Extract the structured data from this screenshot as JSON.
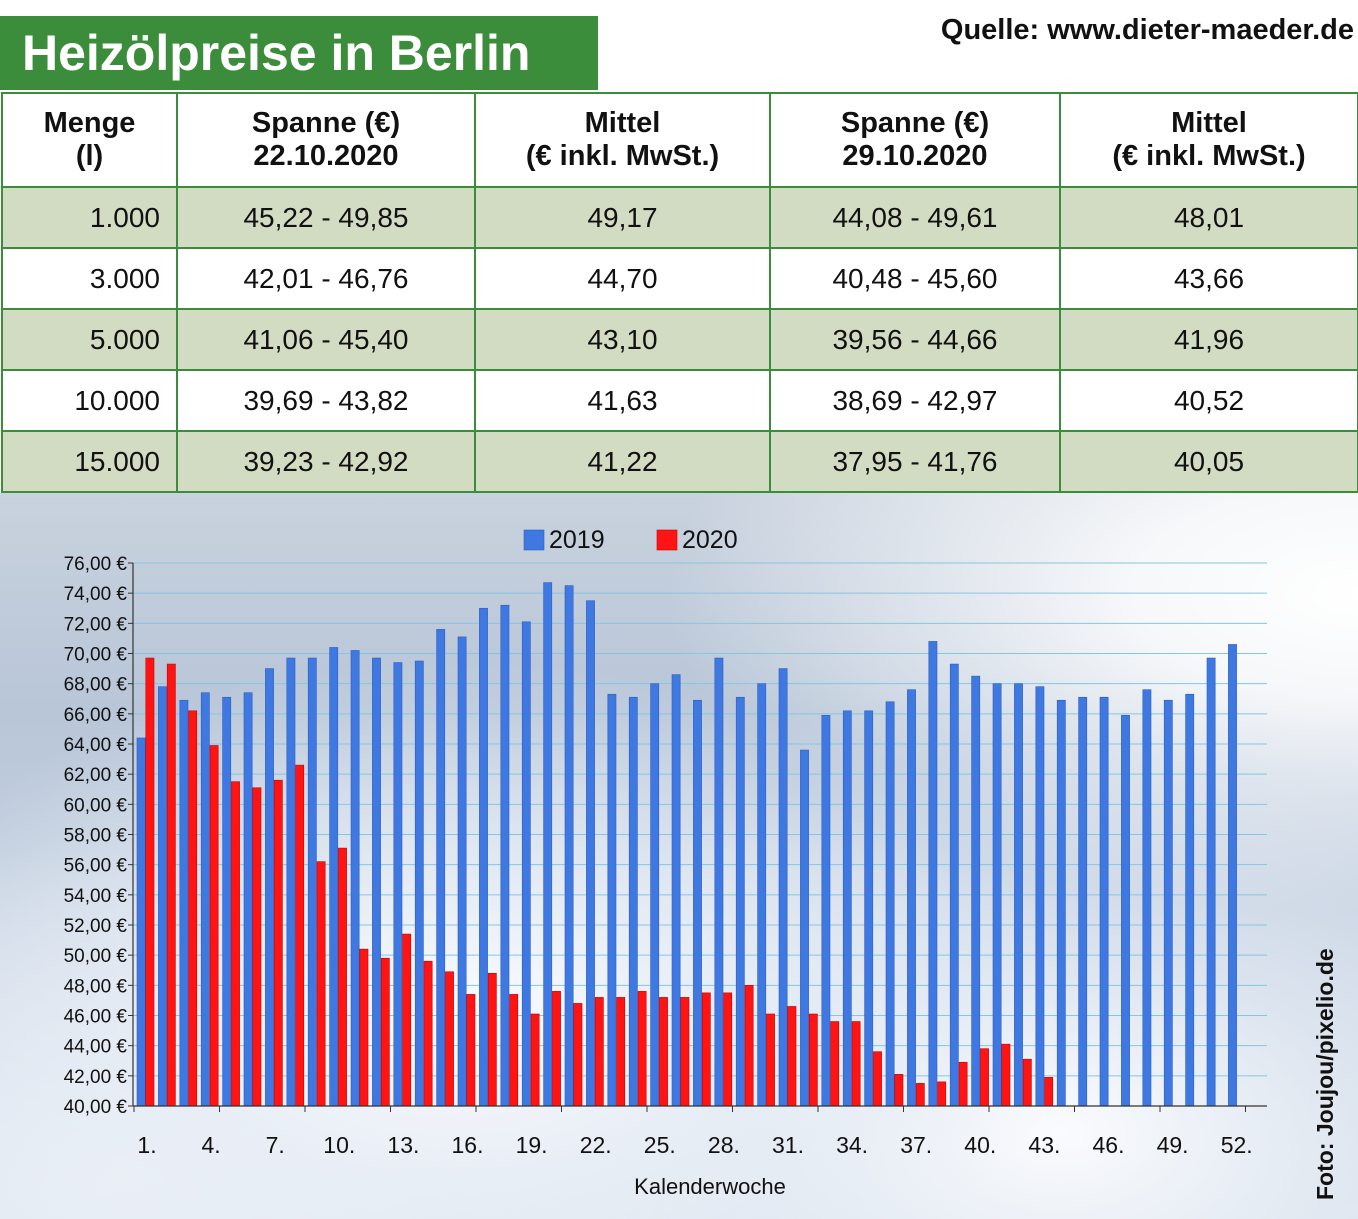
{
  "header": {
    "title": "Heizölpreise in Berlin",
    "source": "Quelle: www.dieter-maeder.de"
  },
  "table": {
    "columns": [
      {
        "line1": "Menge",
        "line2": "(l)"
      },
      {
        "line1": "Spanne (€)",
        "line2": "22.10.2020"
      },
      {
        "line1": "Mittel",
        "line2": "(€ inkl. MwSt.)"
      },
      {
        "line1": "Spanne (€)",
        "line2": "29.10.2020"
      },
      {
        "line1": "Mittel",
        "line2": "(€ inkl. MwSt.)"
      }
    ],
    "rows": [
      [
        "1.000",
        "45,22 - 49,85",
        "49,17",
        "44,08 - 49,61",
        "48,01"
      ],
      [
        "3.000",
        "42,01 - 46,76",
        "44,70",
        "40,48 - 45,60",
        "43,66"
      ],
      [
        "5.000",
        "41,06 - 45,40",
        "43,10",
        "39,56 - 44,66",
        "41,96"
      ],
      [
        "10.000",
        "39,69 - 43,82",
        "41,63",
        "38,69 - 42,97",
        "40,52"
      ],
      [
        "15.000",
        "39,23 - 42,92",
        "41,22",
        "37,95 - 41,76",
        "40,05"
      ]
    ]
  },
  "chart_data": {
    "type": "bar",
    "xlabel": "Kalenderwoche",
    "ylabel": "",
    "ylim": [
      40,
      76
    ],
    "y_ticks": [
      "40,00 €",
      "42,00 €",
      "44,00 €",
      "46,00 €",
      "48,00 €",
      "50,00 €",
      "52,00 €",
      "54,00 €",
      "56,00 €",
      "58,00 €",
      "60,00 €",
      "62,00 €",
      "64,00 €",
      "66,00 €",
      "68,00 €",
      "70,00 €",
      "72,00 €",
      "74,00 €",
      "76,00 €"
    ],
    "x_tick_labels": [
      "1.",
      "4.",
      "7.",
      "10.",
      "13.",
      "16.",
      "19.",
      "22.",
      "25.",
      "28.",
      "31.",
      "34.",
      "37.",
      "40.",
      "43.",
      "46.",
      "49.",
      "52."
    ],
    "legend_position": "top-center",
    "grid": true,
    "x": [
      1,
      2,
      3,
      4,
      5,
      6,
      7,
      8,
      9,
      10,
      11,
      12,
      13,
      14,
      15,
      16,
      17,
      18,
      19,
      20,
      21,
      22,
      23,
      24,
      25,
      26,
      27,
      28,
      29,
      30,
      31,
      32,
      33,
      34,
      35,
      36,
      37,
      38,
      39,
      40,
      41,
      42,
      43,
      44,
      45,
      46,
      47,
      48,
      49,
      50,
      51,
      52
    ],
    "series": [
      {
        "name": "2019",
        "color": "#3f78e0",
        "values": [
          64.4,
          67.8,
          66.9,
          67.4,
          67.1,
          67.4,
          69.0,
          69.7,
          69.7,
          70.4,
          70.2,
          69.7,
          69.4,
          69.5,
          71.6,
          71.1,
          73.0,
          73.2,
          72.1,
          74.7,
          74.5,
          73.5,
          67.3,
          67.1,
          68.0,
          68.6,
          66.9,
          69.7,
          67.1,
          68.0,
          69.0,
          63.6,
          65.9,
          66.2,
          66.2,
          66.8,
          67.6,
          70.8,
          69.3,
          68.5,
          68.0,
          68.0,
          67.8,
          66.9,
          67.1,
          67.1,
          65.9,
          67.6,
          66.9,
          67.3,
          69.7,
          70.6
        ]
      },
      {
        "name": "2020",
        "color": "#ff1414",
        "values": [
          69.7,
          69.3,
          66.2,
          63.9,
          61.5,
          61.1,
          61.6,
          62.6,
          56.2,
          57.1,
          50.4,
          49.8,
          51.4,
          49.6,
          48.9,
          47.4,
          48.8,
          47.4,
          46.1,
          47.6,
          46.8,
          47.2,
          47.2,
          47.6,
          47.2,
          47.2,
          47.5,
          47.5,
          48.0,
          46.1,
          46.6,
          46.1,
          45.6,
          45.6,
          43.6,
          42.1,
          41.5,
          41.6,
          42.9,
          43.8,
          44.1,
          43.1,
          41.9,
          null,
          null,
          null,
          null,
          null,
          null,
          null,
          null,
          null
        ]
      }
    ]
  },
  "footer": {
    "photo_credit": "Foto: Joujou/pixelio.de"
  }
}
